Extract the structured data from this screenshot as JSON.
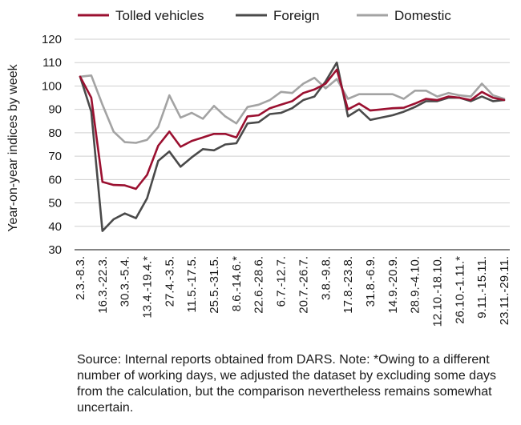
{
  "chart_data": {
    "type": "line",
    "title": "",
    "xlabel": "",
    "ylabel": "Year-on-year indices by week",
    "ylim": [
      30,
      120
    ],
    "yticks": [
      30,
      40,
      50,
      60,
      70,
      80,
      90,
      100,
      110,
      120
    ],
    "grid": "horizontal",
    "legend_position": "top",
    "x": [
      "2.3.-8.3.",
      "9.3.-15.3.",
      "16.3.-22.3.",
      "23.3.-29.3.",
      "30.3.-5.4.",
      "6.4.-12.4.",
      "13.4.-19.4.*",
      "20.4.-26.4.",
      "27.4.-3.5.",
      "4.5.-10.5.",
      "11.5.-17.5.",
      "18.5.-24.5.",
      "25.5.-31.5.",
      "1.6.-7.6.",
      "8.6.-14.6.*",
      "15.6.-21.6.",
      "22.6.-28.6.",
      "29.6.-5.7.",
      "6.7.-12.7.",
      "13.7.-19.7.",
      "20.7.-26.7.",
      "27.7.-2.8.",
      "3.8.-9.8.",
      "10.8.-16.8.",
      "17.8.-23.8.",
      "24.8.-30.8.",
      "31.8.-6.9.",
      "7.9.-13.9.",
      "14.9.-20.9.",
      "21.9.-27.9.",
      "28.9.-4.10.",
      "5.10.-11.10.",
      "12.10.-18.10.",
      "19.10.-25.10.",
      "26.10.-1.11.*",
      "2.11.-8.11.",
      "9.11.-15.11.",
      "16.11.-22.11.",
      "23.11.-29.11."
    ],
    "x_tick_labels_shown": [
      "2.3.-8.3.",
      "16.3.-22.3.",
      "30.3.-5.4.",
      "13.4.-19.4.*",
      "27.4.-3.5.",
      "11.5.-17.5.",
      "25.5.-31.5.",
      "8.6.-14.6.*",
      "22.6.-28.6.",
      "6.7.-12.7.",
      "20.7.-26.7.",
      "3.8.-9.8.",
      "17.8.-23.8.",
      "31.8.-6.9.",
      "14.9.-20.9.",
      "28.9.-4.10.",
      "12.10.-18.10.",
      "26.10.-1.11.*",
      "9.11.-15.11.",
      "23.11.-29.11."
    ],
    "series": [
      {
        "name": "Tolled vehicles",
        "color": "#9b1030",
        "values": [
          104,
          95,
          59,
          57.7,
          57.5,
          56,
          62,
          74.5,
          80.5,
          74,
          76.5,
          78,
          79.5,
          79.5,
          78,
          87,
          87.5,
          90.5,
          92,
          93.5,
          97,
          98.5,
          101,
          107,
          90,
          92.5,
          89.5,
          90,
          90.5,
          90.7,
          92.5,
          94.5,
          94,
          95.5,
          95,
          94,
          97.5,
          95,
          94
        ]
      },
      {
        "name": "Foreign",
        "color": "#4a4a4a",
        "values": [
          104,
          89,
          38,
          43,
          45.5,
          43.5,
          52,
          68,
          72,
          65.5,
          69.5,
          73,
          72.5,
          75,
          75.5,
          84,
          84.5,
          88,
          88.5,
          90.5,
          94,
          95.5,
          102,
          110,
          87,
          90,
          85.5,
          86.5,
          87.5,
          89,
          91,
          93.5,
          93.5,
          95,
          95,
          93.5,
          95.5,
          93.5,
          94
        ]
      },
      {
        "name": "Domestic",
        "color": "#a3a3a3",
        "values": [
          104,
          104.5,
          92,
          80.5,
          76,
          75.7,
          77,
          82.5,
          96,
          86.5,
          88.5,
          86,
          91.5,
          87,
          84,
          91,
          92,
          94,
          97.5,
          97,
          101,
          103.5,
          99,
          103,
          94.5,
          96.5,
          96.5,
          96.5,
          96.5,
          94.5,
          98,
          98,
          95.5,
          97,
          96,
          95.5,
          101,
          96,
          94.5
        ]
      }
    ]
  },
  "note": "Source: Internal reports obtained from DARS. Note: *Owing to a different number of working days, we adjusted the dataset by excluding some days from the calculation, but the comparison nevertheless remains somewhat uncertain."
}
